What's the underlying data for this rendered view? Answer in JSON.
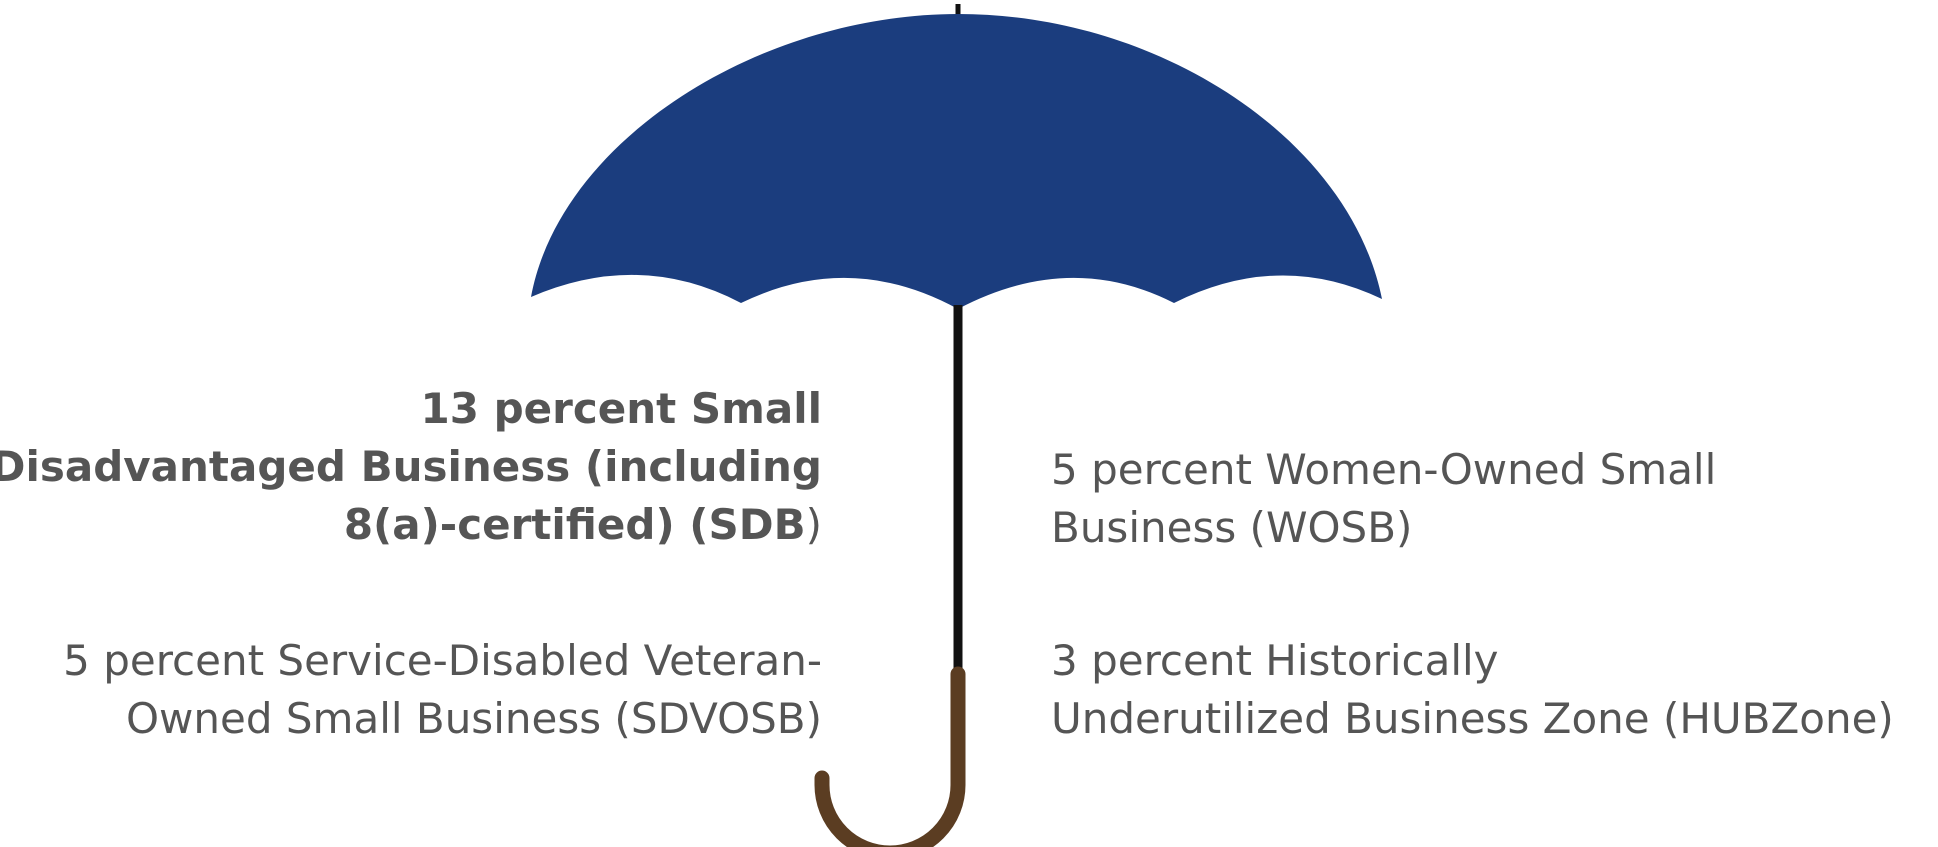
{
  "labels": [
    {
      "lines": [
        "13 percent Small",
        "Disadvantaged Business (including",
        "8(a)-certified) (SDB"
      ],
      "closing": ")"
    },
    {
      "lines": [
        "5 percent Service-Disabled Veteran-",
        "Owned Small Business (SDVOSB)"
      ]
    },
    {
      "lines": [
        "5 percent Women-Owned Small",
        "Business (WOSB)"
      ]
    },
    {
      "lines": [
        "3 percent Historically",
        "Underutilized Business Zone (HUBZone)"
      ]
    }
  ]
}
